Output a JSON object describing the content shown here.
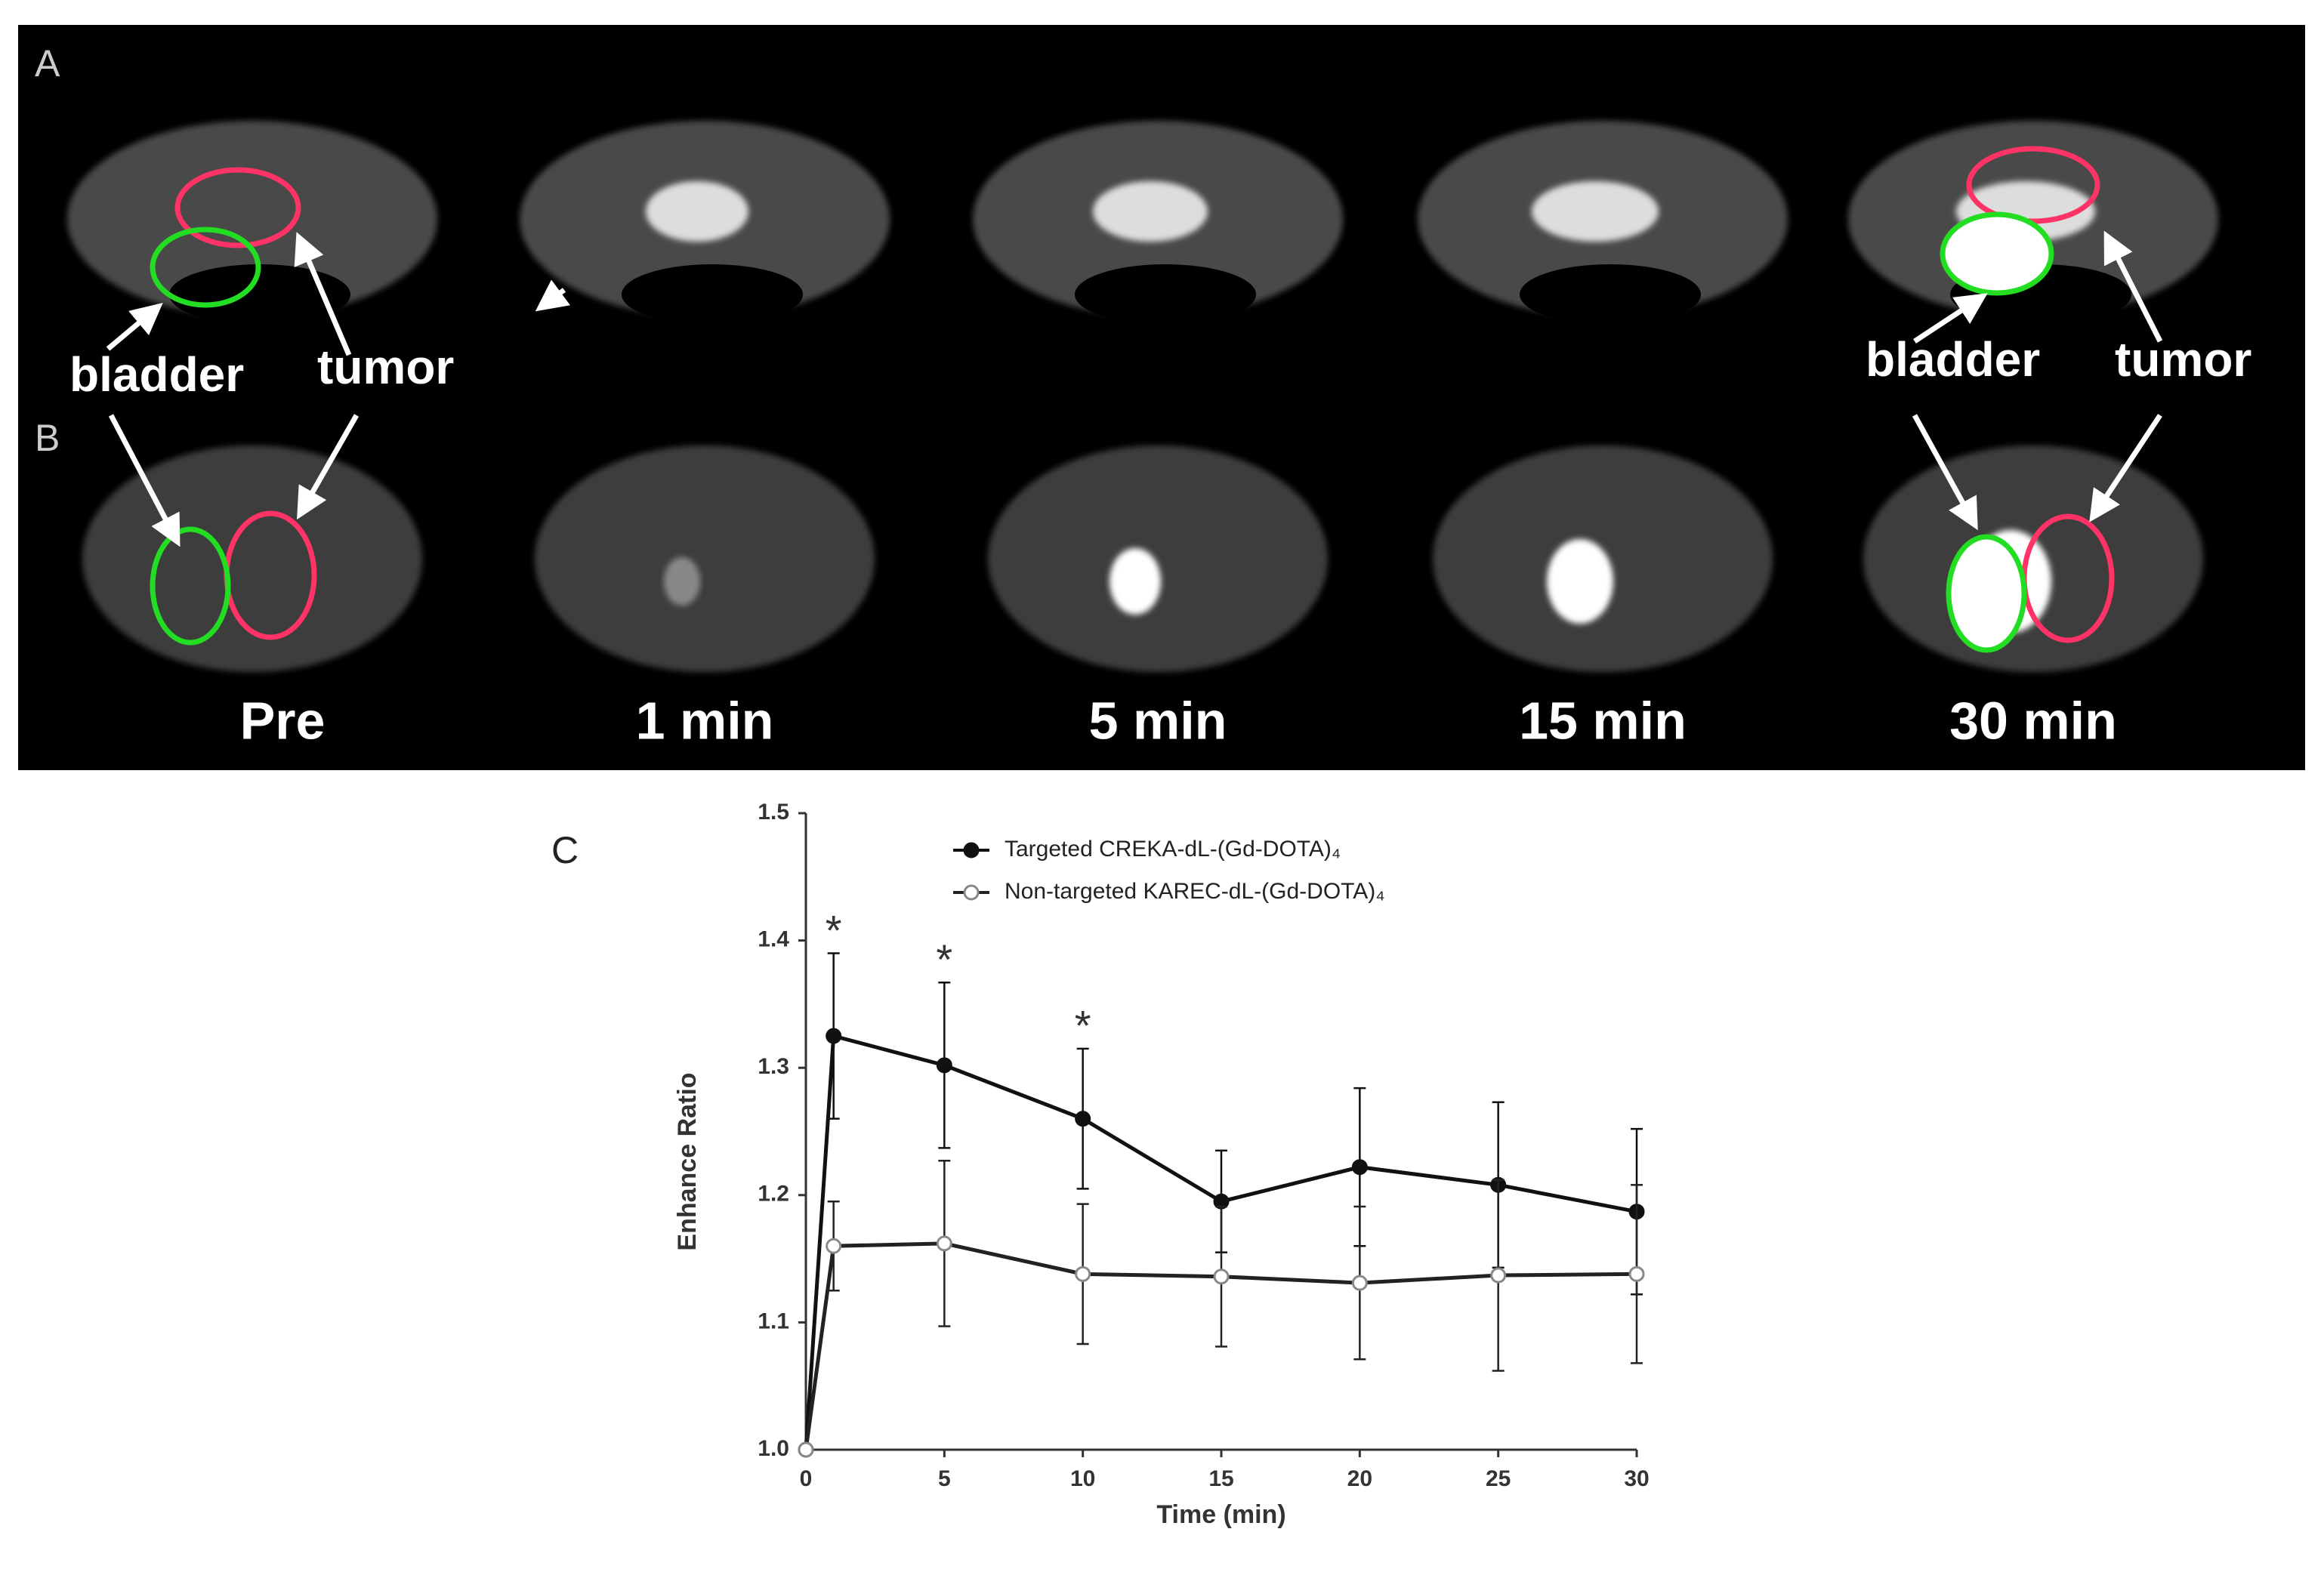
{
  "figure": {
    "panel_a_label": "A",
    "panel_b_label": "B",
    "panel_c_label": "C",
    "arrow_labels": [
      "bladder",
      "tumor",
      "bladder",
      "tumor"
    ],
    "time_labels": [
      "Pre",
      "1 min",
      "5 min",
      "15 min",
      "30 min"
    ]
  },
  "chart_data": {
    "type": "line",
    "xlabel": "Time (min)",
    "ylabel": "Enhance Ratio",
    "x": [
      0,
      1,
      5,
      10,
      15,
      20,
      25,
      30
    ],
    "series": [
      {
        "name": "Targeted CREKA-dL-(Gd-DOTA)₄",
        "color": "#111111",
        "marker": "filled",
        "values": [
          1.0,
          1.325,
          1.302,
          1.26,
          1.195,
          1.222,
          1.208,
          1.187
        ],
        "errors": [
          0,
          0.065,
          0.065,
          0.055,
          0.04,
          0.062,
          0.065,
          0.065
        ]
      },
      {
        "name": "Non-targeted KAREC-dL-(Gd-DOTA)₄",
        "color": "#222222",
        "marker": "open",
        "values": [
          1.0,
          1.16,
          1.162,
          1.138,
          1.136,
          1.131,
          1.137,
          1.138
        ],
        "errors": [
          0,
          0.035,
          0.065,
          0.055,
          0.055,
          0.06,
          0.075,
          0.07
        ]
      }
    ],
    "significance": [
      {
        "x": 1,
        "label": "*"
      },
      {
        "x": 5,
        "label": "*"
      },
      {
        "x": 10,
        "label": "*"
      }
    ],
    "xlim": [
      0,
      30
    ],
    "ylim": [
      1.0,
      1.5
    ],
    "xticks": [
      0,
      5,
      10,
      15,
      20,
      25,
      30
    ],
    "yticks": [
      {
        "value": 1.0,
        "label": "1.0"
      },
      1.1,
      1.2,
      1.3,
      1.4,
      1.5
    ],
    "grid": false
  }
}
